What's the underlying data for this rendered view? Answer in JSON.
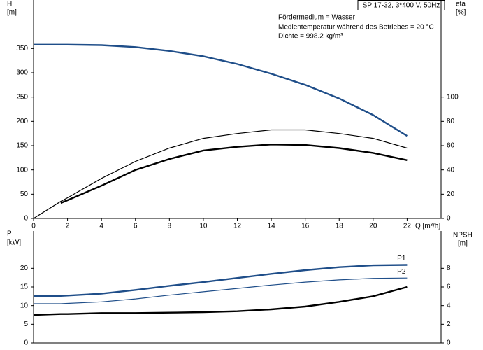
{
  "chart_data": [
    {
      "type": "line",
      "subtitle": "SP 17-32, 3*400 V, 50Hz",
      "annotations": [
        "Fördermedium = Wasser",
        "Medientemperatur während des Betriebes = 20 °C",
        "Dichte = 998.2 kg/m³"
      ],
      "y_label": "H",
      "y_unit": "[m]",
      "y2_label": "eta",
      "y2_unit": "[%]",
      "x_label": "Q [m³/h]",
      "x": [
        0,
        1.6,
        2,
        4,
        6,
        8,
        10,
        12,
        14,
        16,
        18,
        20,
        22
      ],
      "xlim": [
        0,
        24
      ],
      "xticks": [
        0,
        2,
        4,
        6,
        8,
        10,
        12,
        14,
        16,
        18,
        20,
        22
      ],
      "ylim": [
        0,
        450
      ],
      "yticks": [
        0,
        50,
        100,
        150,
        200,
        250,
        300,
        350
      ],
      "y2lim": [
        0,
        180
      ],
      "y2ticks": [
        0,
        20,
        40,
        60,
        80,
        100
      ],
      "series": [
        {
          "color": "#1f4e89",
          "values": [
            358,
            358,
            358,
            357,
            353,
            345,
            334,
            318,
            298,
            275,
            247,
            213,
            170
          ]
        },
        {
          "color": "#000000",
          "axis": "y2",
          "values": [
            0,
            14,
            17,
            33,
            47,
            58,
            66,
            70,
            73,
            73,
            70,
            66,
            58
          ]
        },
        {
          "color": "#000000",
          "axis": "y2",
          "values": [
            null,
            12.7,
            15,
            27,
            40,
            49,
            56,
            59,
            61,
            60.5,
            58,
            54,
            48
          ]
        }
      ]
    },
    {
      "type": "line",
      "y_label": "P",
      "y_unit": "[kW]",
      "y2_label": "NPSH",
      "y2_unit": "[m]",
      "x": [
        0,
        1.6,
        2,
        4,
        6,
        8,
        10,
        12,
        14,
        16,
        18,
        20,
        22
      ],
      "xlim": [
        0,
        24
      ],
      "ylim": [
        0,
        30
      ],
      "yticks": [
        0,
        5,
        10,
        15,
        20
      ],
      "y2lim": [
        0,
        12
      ],
      "y2ticks": [
        0,
        2,
        4,
        6,
        8
      ],
      "series": [
        {
          "name": "P1",
          "color": "#1f4e89",
          "values": [
            12.6,
            12.6,
            12.7,
            13.2,
            14.2,
            15.3,
            16.3,
            17.4,
            18.5,
            19.5,
            20.3,
            20.8,
            20.9
          ]
        },
        {
          "name": "P2",
          "color": "#1f4e89",
          "values": [
            10.5,
            10.5,
            10.6,
            11,
            11.8,
            12.8,
            13.7,
            14.6,
            15.5,
            16.3,
            16.9,
            17.3,
            17.4
          ]
        },
        {
          "color": "#000000",
          "axis": "y2",
          "values": [
            3.0,
            3.1,
            3.1,
            3.2,
            3.2,
            3.25,
            3.3,
            3.4,
            3.6,
            3.9,
            4.4,
            5.0,
            6.0
          ]
        }
      ]
    }
  ]
}
